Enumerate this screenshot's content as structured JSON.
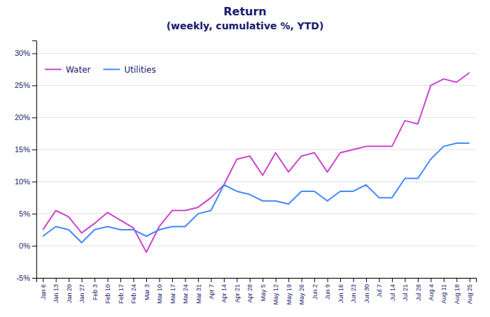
{
  "chart_data": {
    "type": "line",
    "title": "Return",
    "subtitle": "(weekly, cumulative %, YTD)",
    "categories": [
      "Jan 6",
      "Jan 13",
      "Jan 20",
      "Jan 27",
      "Feb 3",
      "Feb 10",
      "Feb 17",
      "Feb 24",
      "Mar 3",
      "Mar 10",
      "Mar 17",
      "Mar 24",
      "Mar 31",
      "Apr 7",
      "Apr 14",
      "Apr 21",
      "Apr 28",
      "May 5",
      "May 12",
      "May 19",
      "May 26",
      "Jun 2",
      "Jun 9",
      "Jun 16",
      "Jun 23",
      "Jun 30",
      "Jul 7",
      "Jul 14",
      "Jul 21",
      "Jul 28",
      "Aug 4",
      "Aug 11",
      "Aug 18",
      "Aug 25"
    ],
    "series": [
      {
        "name": "Water",
        "color": "#cc44cc",
        "values": [
          2.5,
          5.5,
          4.5,
          2.0,
          3.5,
          5.2,
          4.0,
          2.8,
          -1.0,
          3.0,
          5.5,
          5.5,
          6.0,
          7.5,
          9.5,
          13.5,
          14.0,
          11.0,
          14.5,
          11.5,
          14.0,
          14.5,
          11.5,
          14.5,
          15.0,
          15.5,
          15.5,
          15.5,
          19.5,
          19.0,
          25.0,
          26.0,
          25.5,
          27.0
        ]
      },
      {
        "name": "Utilities",
        "color": "#4488ff",
        "values": [
          1.5,
          3.0,
          2.5,
          0.5,
          2.5,
          3.0,
          2.5,
          2.5,
          1.5,
          2.5,
          3.0,
          3.0,
          5.0,
          5.5,
          9.5,
          8.5,
          8.0,
          7.0,
          7.0,
          6.5,
          8.5,
          8.5,
          7.0,
          8.5,
          8.5,
          9.5,
          7.5,
          7.5,
          10.5,
          10.5,
          13.5,
          15.5,
          16.0,
          16.0
        ]
      }
    ],
    "ylim": [
      -5,
      32
    ],
    "yticks": [
      {
        "value": -5,
        "label": "-5%"
      },
      {
        "value": 0,
        "label": "0%"
      },
      {
        "value": 5,
        "label": "5%"
      },
      {
        "value": 10,
        "label": "10%"
      },
      {
        "value": 15,
        "label": "15%"
      },
      {
        "value": 20,
        "label": "20%"
      },
      {
        "value": 25,
        "label": "25%"
      },
      {
        "value": 30,
        "label": "30%"
      }
    ],
    "grid": true,
    "legend": "top-left"
  }
}
